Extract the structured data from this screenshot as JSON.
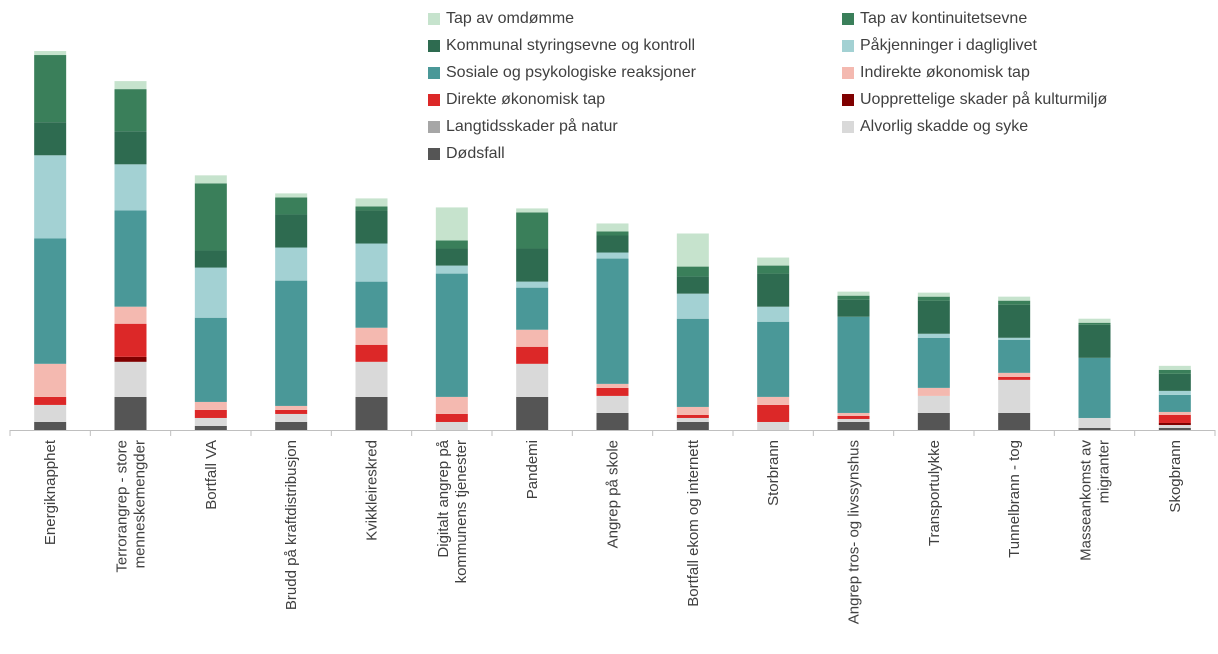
{
  "chart_data": {
    "type": "bar",
    "stacked": true,
    "categories": [
      "Energiknapphet",
      "Terrorangrep - store menneskemengder",
      "Bortfall VA",
      "Brudd på kraftdistribusjon",
      "Kvikkleireskred",
      "Digitalt angrep på kommunens tjenester",
      "Pandemi",
      "Angrep på skole",
      "Bortfall ekom og internett",
      "Storbrann",
      "Angrep tros- og livssynshus",
      "Transportulykke",
      "Tunnelbrann - tog",
      "Masseankomst av migranter",
      "Skogbrann"
    ],
    "category_lines": [
      [
        "Energiknapphet"
      ],
      [
        "Terrorangrep - store",
        "menneskemengder"
      ],
      [
        "Bortfall VA"
      ],
      [
        "Brudd på kraftdistribusjon"
      ],
      [
        "Kvikkleireskred"
      ],
      [
        "Digitalt angrep på",
        "kommunens tjenester"
      ],
      [
        "Pandemi"
      ],
      [
        "Angrep på skole"
      ],
      [
        "Bortfall ekom og internett"
      ],
      [
        "Storbrann"
      ],
      [
        "Angrep tros- og livssynshus"
      ],
      [
        "Transportulykke"
      ],
      [
        "Tunnelbrann - tog"
      ],
      [
        "Masseankomst av",
        "migranter"
      ],
      [
        "Skogbrann"
      ]
    ],
    "ylim": [
      0,
      385
    ],
    "series": [
      {
        "name": "Dødsfall",
        "color": "#555555",
        "values": [
          8,
          33,
          4,
          8,
          33,
          0,
          33,
          17,
          8,
          0,
          8,
          17,
          17,
          2,
          2
        ]
      },
      {
        "name": "Alvorlig skadde og syke",
        "color": "#d9d9d9",
        "values": [
          17,
          35,
          8,
          8,
          35,
          8,
          33,
          17,
          4,
          8,
          3,
          17,
          33,
          10,
          3
        ]
      },
      {
        "name": "Langtidsskader på natur",
        "color": "#a6a6a6",
        "values": [
          0,
          0,
          0,
          0,
          0,
          0,
          0,
          0,
          0,
          0,
          0,
          0,
          0,
          0,
          0
        ]
      },
      {
        "name": "Uopprettelige skader på kulturmiljø",
        "color": "#7f0000",
        "values": [
          0,
          5,
          0,
          0,
          0,
          0,
          0,
          0,
          0,
          0,
          0,
          0,
          0,
          0,
          2
        ]
      },
      {
        "name": "Direkte økonomisk tap",
        "color": "#dc2828",
        "values": [
          8,
          33,
          8,
          4,
          17,
          8,
          17,
          8,
          3,
          17,
          3,
          0,
          3,
          0,
          8
        ]
      },
      {
        "name": "Indirekte økonomisk tap",
        "color": "#f4b9b0",
        "values": [
          33,
          17,
          8,
          4,
          17,
          17,
          17,
          4,
          8,
          8,
          3,
          8,
          4,
          0,
          3
        ]
      },
      {
        "name": "Sosiale og psykologiske reaksjoner",
        "color": "#4a9898",
        "values": [
          125,
          96,
          84,
          125,
          46,
          123,
          42,
          125,
          88,
          75,
          96,
          50,
          33,
          60,
          17
        ]
      },
      {
        "name": "Påkjenninger i dagliglivet",
        "color": "#a3d1d3",
        "values": [
          83,
          46,
          50,
          33,
          38,
          8,
          6,
          6,
          25,
          15,
          0,
          4,
          2,
          0,
          4
        ]
      },
      {
        "name": "Kommunal styringsevne og kontroll",
        "color": "#2e6b50",
        "values": [
          33,
          33,
          17,
          33,
          33,
          17,
          33,
          17,
          17,
          33,
          17,
          33,
          33,
          33,
          17
        ]
      },
      {
        "name": "Tap av kontinuitetsevne",
        "color": "#3a7f5a",
        "values": [
          67,
          42,
          67,
          17,
          4,
          8,
          36,
          4,
          10,
          8,
          4,
          4,
          4,
          2,
          4
        ]
      },
      {
        "name": "Tap av omdømme",
        "color": "#c6e3cd",
        "values": [
          4,
          8,
          8,
          4,
          8,
          33,
          4,
          8,
          33,
          8,
          4,
          4,
          4,
          4,
          4
        ]
      }
    ]
  },
  "legend": {
    "items": [
      {
        "label": "Tap av omdømme",
        "color": "#c6e3cd"
      },
      {
        "label": "Tap av kontinuitetsevne",
        "color": "#3a7f5a"
      },
      {
        "label": "Kommunal styringsevne og kontroll",
        "color": "#2e6b50"
      },
      {
        "label": "Påkjenninger i dagliglivet",
        "color": "#a3d1d3"
      },
      {
        "label": "Sosiale og psykologiske reaksjoner",
        "color": "#4a9898"
      },
      {
        "label": "Indirekte økonomisk tap",
        "color": "#f4b9b0"
      },
      {
        "label": "Direkte økonomisk tap",
        "color": "#dc2828"
      },
      {
        "label": "Uopprettelige skader på kulturmiljø",
        "color": "#7f0000"
      },
      {
        "label": "Langtidsskader på natur",
        "color": "#a6a6a6"
      },
      {
        "label": "Alvorlig skadde og syke",
        "color": "#d9d9d9"
      },
      {
        "label": "Dødsfall",
        "color": "#555555"
      }
    ]
  }
}
